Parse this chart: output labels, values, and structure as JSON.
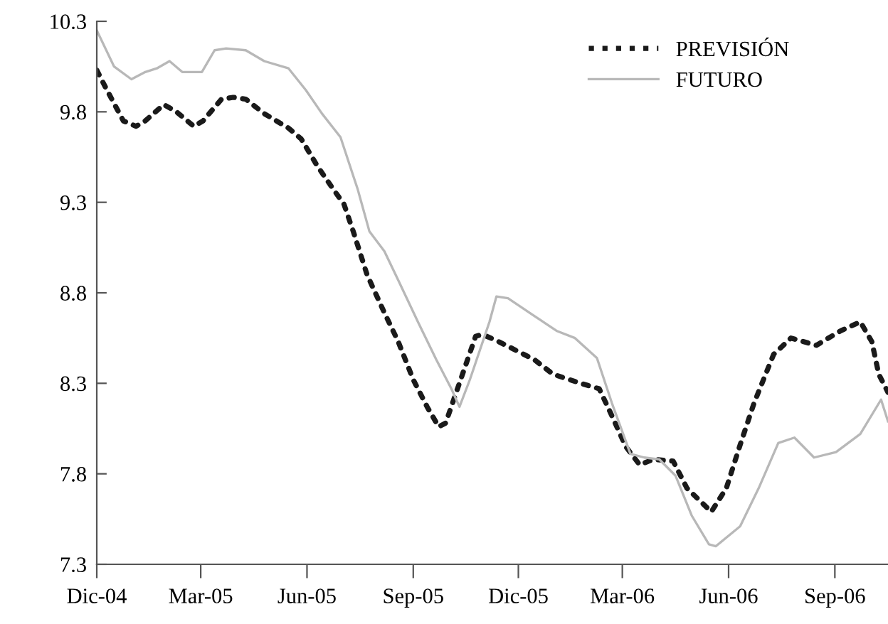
{
  "chart_data": {
    "type": "line",
    "legend": "top right",
    "grid": false,
    "xlim": [
      "2004-12-01",
      "2006-10-17"
    ],
    "xticks": [
      {
        "value": "2004-12-01",
        "label": "Dic-04"
      },
      {
        "value": "2005-03-01",
        "label": "Mar-05"
      },
      {
        "value": "2005-06-01",
        "label": "Jun-05"
      },
      {
        "value": "2005-09-01",
        "label": "Sep-05"
      },
      {
        "value": "2005-12-01",
        "label": "Dic-05"
      },
      {
        "value": "2006-03-01",
        "label": "Mar-06"
      },
      {
        "value": "2006-06-01",
        "label": "Jun-06"
      },
      {
        "value": "2006-09-01",
        "label": "Sep-06"
      }
    ],
    "ylim": [
      7.3,
      10.3
    ],
    "yticks": [
      7.3,
      7.8,
      8.3,
      8.8,
      9.3,
      9.8,
      10.3
    ],
    "series": [
      {
        "name": "PREVISIÓN",
        "color": "#1a1a1a",
        "line_style": "dotted",
        "x": [
          "2004-12-01",
          "2004-12-09",
          "2004-12-24",
          "2005-01-04",
          "2005-01-12",
          "2005-01-28",
          "2005-02-08",
          "2005-02-23",
          "2005-03-03",
          "2005-03-19",
          "2005-03-29",
          "2005-04-09",
          "2005-04-25",
          "2005-05-16",
          "2005-05-27",
          "2005-06-10",
          "2005-06-24",
          "2005-07-03",
          "2005-07-11",
          "2005-07-23",
          "2005-08-07",
          "2005-08-19",
          "2005-09-01",
          "2005-09-13",
          "2005-09-23",
          "2005-09-29",
          "2005-10-12",
          "2005-10-25",
          "2005-10-31",
          "2005-11-14",
          "2005-12-15",
          "2005-12-31",
          "2006-01-24",
          "2006-02-09",
          "2006-02-20",
          "2006-03-04",
          "2006-03-16",
          "2006-03-28",
          "2006-04-14",
          "2006-04-26",
          "2006-05-17",
          "2006-05-30",
          "2006-06-11",
          "2006-06-23",
          "2006-07-10",
          "2006-07-25",
          "2006-08-16",
          "2006-09-06",
          "2006-09-23",
          "2006-10-03",
          "2006-10-09",
          "2006-10-17"
        ],
        "values": [
          10.03,
          9.93,
          9.75,
          9.72,
          9.75,
          9.84,
          9.8,
          9.72,
          9.75,
          9.87,
          9.88,
          9.87,
          9.79,
          9.71,
          9.65,
          9.5,
          9.37,
          9.29,
          9.14,
          8.9,
          8.69,
          8.53,
          8.32,
          8.17,
          8.06,
          8.08,
          8.32,
          8.56,
          8.57,
          8.53,
          8.43,
          8.35,
          8.3,
          8.27,
          8.12,
          7.95,
          7.85,
          7.88,
          7.87,
          7.72,
          7.59,
          7.72,
          7.96,
          8.19,
          8.46,
          8.55,
          8.51,
          8.59,
          8.64,
          8.53,
          8.35,
          8.25
        ]
      },
      {
        "name": "FUTURO",
        "color": "#b8b8b8",
        "line_style": "solid",
        "x": [
          "2004-12-01",
          "2004-12-16",
          "2004-12-31",
          "2005-01-12",
          "2005-01-22",
          "2005-02-02",
          "2005-02-13",
          "2005-03-02",
          "2005-03-13",
          "2005-03-23",
          "2005-04-09",
          "2005-04-25",
          "2005-05-16",
          "2005-05-31",
          "2005-06-14",
          "2005-06-30",
          "2005-07-15",
          "2005-07-25",
          "2005-08-07",
          "2005-08-19",
          "2005-09-05",
          "2005-09-21",
          "2005-10-04",
          "2005-10-11",
          "2005-10-20",
          "2005-11-06",
          "2005-11-12",
          "2005-11-22",
          "2005-12-13",
          "2006-01-03",
          "2006-01-19",
          "2006-02-07",
          "2006-02-20",
          "2006-03-08",
          "2006-03-20",
          "2006-04-02",
          "2006-04-16",
          "2006-04-30",
          "2006-05-15",
          "2006-05-21",
          "2006-06-11",
          "2006-06-27",
          "2006-07-14",
          "2006-07-28",
          "2006-08-14",
          "2006-09-02",
          "2006-09-23",
          "2006-10-11",
          "2006-10-17"
        ],
        "values": [
          10.25,
          10.05,
          9.98,
          10.02,
          10.04,
          10.08,
          10.02,
          10.02,
          10.14,
          10.15,
          10.14,
          10.08,
          10.04,
          9.92,
          9.79,
          9.66,
          9.37,
          9.14,
          9.03,
          8.87,
          8.64,
          8.43,
          8.27,
          8.17,
          8.32,
          8.64,
          8.78,
          8.77,
          8.68,
          8.59,
          8.55,
          8.44,
          8.19,
          7.91,
          7.89,
          7.88,
          7.79,
          7.57,
          7.41,
          7.4,
          7.51,
          7.72,
          7.97,
          8.0,
          7.89,
          7.92,
          8.02,
          8.21,
          8.09
        ]
      }
    ]
  }
}
